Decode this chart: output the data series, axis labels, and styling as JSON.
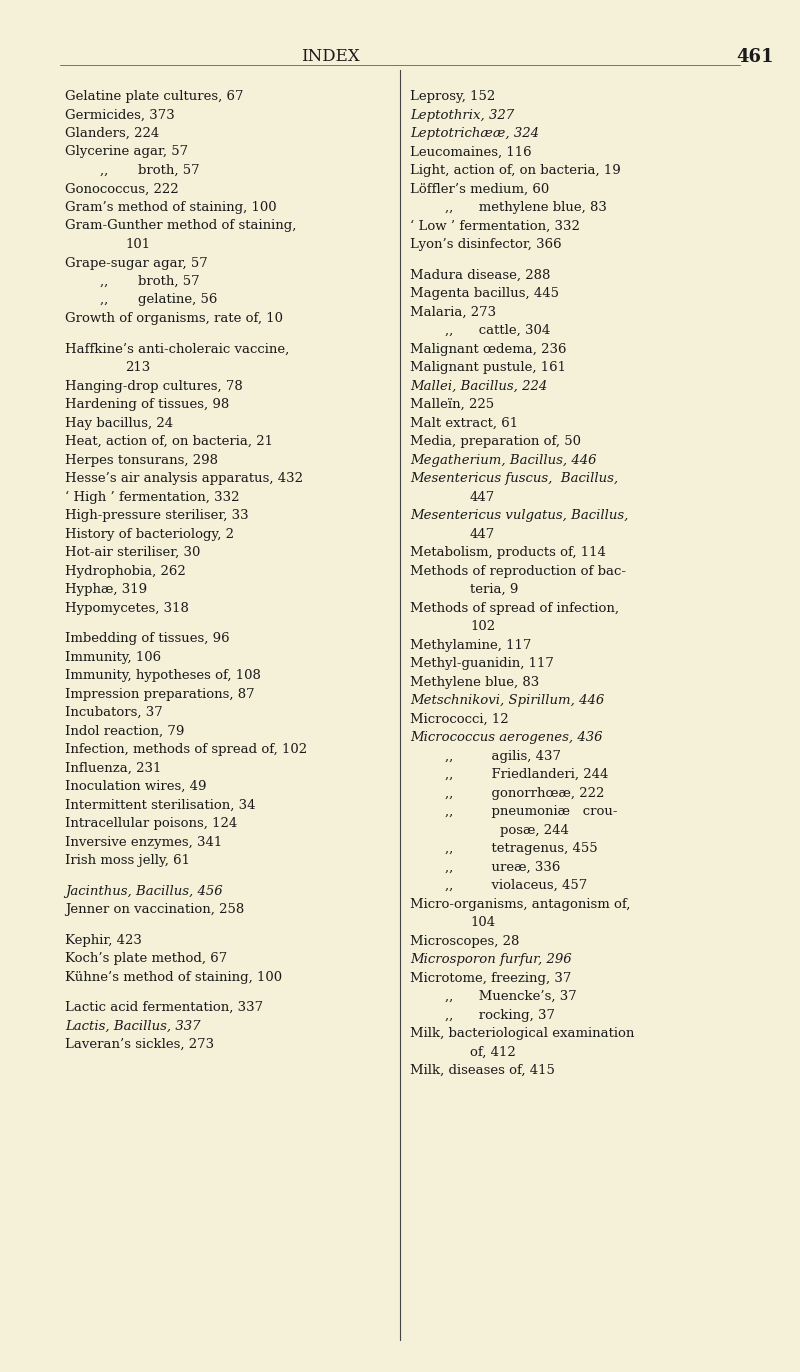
{
  "background_color": "#f5f0d8",
  "header_title": "INDEX",
  "header_page": "461",
  "left_column": [
    {
      "text": "Gelatine plate cultures, 67",
      "indent": 0,
      "italic": false
    },
    {
      "text": "Germicides, 373",
      "indent": 0,
      "italic": false
    },
    {
      "text": "Glanders, 224",
      "indent": 0,
      "italic": false
    },
    {
      "text": "Glycerine agar, 57",
      "indent": 0,
      "italic": false
    },
    {
      "text": ",,       broth, 57",
      "indent": 1,
      "italic": false
    },
    {
      "text": "Gonococcus, 222",
      "indent": 0,
      "italic": false
    },
    {
      "text": "Gram’s method of staining, 100",
      "indent": 0,
      "italic": false
    },
    {
      "text": "Gram-Gunther method of staining,",
      "indent": 0,
      "italic": false
    },
    {
      "text": "101",
      "indent": 2,
      "italic": false
    },
    {
      "text": "Grape-sugar agar, 57",
      "indent": 0,
      "italic": false
    },
    {
      "text": ",,       broth, 57",
      "indent": 1,
      "italic": false
    },
    {
      "text": ",,       gelatine, 56",
      "indent": 1,
      "italic": false
    },
    {
      "text": "Growth of organisms, rate of, 10",
      "indent": 0,
      "italic": false
    },
    {
      "text": "",
      "indent": 0,
      "italic": false
    },
    {
      "text": "Haffkine’s anti-choleraic vaccine,",
      "indent": 0,
      "italic": false
    },
    {
      "text": "213",
      "indent": 2,
      "italic": false
    },
    {
      "text": "Hanging-drop cultures, 78",
      "indent": 0,
      "italic": false
    },
    {
      "text": "Hardening of tissues, 98",
      "indent": 0,
      "italic": false
    },
    {
      "text": "Hay bacillus, 24",
      "indent": 0,
      "italic": false
    },
    {
      "text": "Heat, action of, on bacteria, 21",
      "indent": 0,
      "italic": false
    },
    {
      "text": "Herpes tonsurans, 298",
      "indent": 0,
      "italic": false
    },
    {
      "text": "Hesse’s air analysis apparatus, 432",
      "indent": 0,
      "italic": false
    },
    {
      "text": "‘ High ’ fermentation, 332",
      "indent": 0,
      "italic": false
    },
    {
      "text": "High-pressure steriliser, 33",
      "indent": 0,
      "italic": false
    },
    {
      "text": "History of bacteriology, 2",
      "indent": 0,
      "italic": false
    },
    {
      "text": "Hot-air steriliser, 30",
      "indent": 0,
      "italic": false
    },
    {
      "text": "Hydrophobia, 262",
      "indent": 0,
      "italic": false
    },
    {
      "text": "Hyphæ, 319",
      "indent": 0,
      "italic": false
    },
    {
      "text": "Hypomycetes, 318",
      "indent": 0,
      "italic": false
    },
    {
      "text": "",
      "indent": 0,
      "italic": false
    },
    {
      "text": "Imbedding of tissues, 96",
      "indent": 0,
      "italic": false
    },
    {
      "text": "Immunity, 106",
      "indent": 0,
      "italic": false
    },
    {
      "text": "Immunity, hypotheses of, 108",
      "indent": 0,
      "italic": false
    },
    {
      "text": "Impression preparations, 87",
      "indent": 0,
      "italic": false
    },
    {
      "text": "Incubators, 37",
      "indent": 0,
      "italic": false
    },
    {
      "text": "Indol reaction, 79",
      "indent": 0,
      "italic": false
    },
    {
      "text": "Infection, methods of spread of, 102",
      "indent": 0,
      "italic": false
    },
    {
      "text": "Influenza, 231",
      "indent": 0,
      "italic": false
    },
    {
      "text": "Inoculation wires, 49",
      "indent": 0,
      "italic": false
    },
    {
      "text": "Intermittent sterilisation, 34",
      "indent": 0,
      "italic": false
    },
    {
      "text": "Intracellular poisons, 124",
      "indent": 0,
      "italic": false
    },
    {
      "text": "Inversive enzymes, 341",
      "indent": 0,
      "italic": false
    },
    {
      "text": "Irish moss jelly, 61",
      "indent": 0,
      "italic": false
    },
    {
      "text": "",
      "indent": 0,
      "italic": false
    },
    {
      "text": "Jacinthus, Bacillus, 456",
      "indent": 0,
      "italic": true
    },
    {
      "text": "Jenner on vaccination, 258",
      "indent": 0,
      "italic": false
    },
    {
      "text": "",
      "indent": 0,
      "italic": false
    },
    {
      "text": "Kephir, 423",
      "indent": 0,
      "italic": false
    },
    {
      "text": "Koch’s plate method, 67",
      "indent": 0,
      "italic": false
    },
    {
      "text": "Kühne’s method of staining, 100",
      "indent": 0,
      "italic": false
    },
    {
      "text": "",
      "indent": 0,
      "italic": false
    },
    {
      "text": "Lactic acid fermentation, 337",
      "indent": 0,
      "italic": false
    },
    {
      "text": "Lactis, Bacillus, 337",
      "indent": 0,
      "italic": true
    },
    {
      "text": "Laveran’s sickles, 273",
      "indent": 0,
      "italic": false
    }
  ],
  "right_column": [
    {
      "text": "Leprosy, 152",
      "indent": 0,
      "italic": false
    },
    {
      "text": "Leptothrix, 327",
      "indent": 0,
      "italic": true
    },
    {
      "text": "Leptotrichææ, 324",
      "indent": 0,
      "italic": true
    },
    {
      "text": "Leucomaines, 116",
      "indent": 0,
      "italic": false
    },
    {
      "text": "Light, action of, on bacteria, 19",
      "indent": 0,
      "italic": false
    },
    {
      "text": "Löffler’s medium, 60",
      "indent": 0,
      "italic": false
    },
    {
      "text": ",,      methylene blue, 83",
      "indent": 1,
      "italic": false
    },
    {
      "text": "‘ Low ’ fermentation, 332",
      "indent": 0,
      "italic": false
    },
    {
      "text": "Lyon’s disinfector, 366",
      "indent": 0,
      "italic": false
    },
    {
      "text": "",
      "indent": 0,
      "italic": false
    },
    {
      "text": "Madura disease, 288",
      "indent": 0,
      "italic": false
    },
    {
      "text": "Magenta bacillus, 445",
      "indent": 0,
      "italic": false
    },
    {
      "text": "Malaria, 273",
      "indent": 0,
      "italic": false
    },
    {
      "text": ",,      cattle, 304",
      "indent": 1,
      "italic": false
    },
    {
      "text": "Malignant œdema, 236",
      "indent": 0,
      "italic": false
    },
    {
      "text": "Malignant pustule, 161",
      "indent": 0,
      "italic": false
    },
    {
      "text": "Mallei, Bacillus, 224",
      "indent": 0,
      "italic": true
    },
    {
      "text": "Malleïn, 225",
      "indent": 0,
      "italic": false
    },
    {
      "text": "Malt extract, 61",
      "indent": 0,
      "italic": false
    },
    {
      "text": "Media, preparation of, 50",
      "indent": 0,
      "italic": false
    },
    {
      "text": "Megatherium, Bacillus, 446",
      "indent": 0,
      "italic": true
    },
    {
      "text": "Mesentericus fuscus,  Bacillus,",
      "indent": 0,
      "italic": true
    },
    {
      "text": "447",
      "indent": 2,
      "italic": false
    },
    {
      "text": "Mesentericus vulgatus, Bacillus,",
      "indent": 0,
      "italic": true
    },
    {
      "text": "447",
      "indent": 2,
      "italic": false
    },
    {
      "text": "Metabolism, products of, 114",
      "indent": 0,
      "italic": false
    },
    {
      "text": "Methods of reproduction of bac-",
      "indent": 0,
      "italic": false
    },
    {
      "text": "teria, 9",
      "indent": 2,
      "italic": false
    },
    {
      "text": "Methods of spread of infection,",
      "indent": 0,
      "italic": false
    },
    {
      "text": "102",
      "indent": 2,
      "italic": false
    },
    {
      "text": "Methylamine, 117",
      "indent": 0,
      "italic": false
    },
    {
      "text": "Methyl-guanidin, 117",
      "indent": 0,
      "italic": false
    },
    {
      "text": "Methylene blue, 83",
      "indent": 0,
      "italic": false
    },
    {
      "text": "Metschnikovi, Spirillum, 446",
      "indent": 0,
      "italic": true
    },
    {
      "text": "Micrococci, 12",
      "indent": 0,
      "italic": false
    },
    {
      "text": "Micrococcus aerogenes, 436",
      "indent": 0,
      "italic": true
    },
    {
      "text": ",,         agilis, 437",
      "indent": 1,
      "italic": false
    },
    {
      "text": ",,         Friedlanderi, 244",
      "indent": 1,
      "italic": false
    },
    {
      "text": ",,         gonorrhœæ, 222",
      "indent": 1,
      "italic": false
    },
    {
      "text": ",,         pneumoniæ   crou-",
      "indent": 1,
      "italic": false
    },
    {
      "text": "posæ, 244",
      "indent": 3,
      "italic": false
    },
    {
      "text": ",,         tetragenus, 455",
      "indent": 1,
      "italic": false
    },
    {
      "text": ",,         ureæ, 336",
      "indent": 1,
      "italic": false
    },
    {
      "text": ",,         violaceus, 457",
      "indent": 1,
      "italic": false
    },
    {
      "text": "Micro-organisms, antagonism of,",
      "indent": 0,
      "italic": false
    },
    {
      "text": "104",
      "indent": 2,
      "italic": false
    },
    {
      "text": "Microscopes, 28",
      "indent": 0,
      "italic": false
    },
    {
      "text": "Microsporon furfur, 296",
      "indent": 0,
      "italic": true
    },
    {
      "text": "Microtome, freezing, 37",
      "indent": 0,
      "italic": false
    },
    {
      "text": ",,      Muencke’s, 37",
      "indent": 1,
      "italic": false
    },
    {
      "text": ",,      rocking, 37",
      "indent": 1,
      "italic": false
    },
    {
      "text": "Milk, bacteriological examination",
      "indent": 0,
      "italic": false
    },
    {
      "text": "of, 412",
      "indent": 2,
      "italic": false
    },
    {
      "text": "Milk, diseases of, 415",
      "indent": 0,
      "italic": false
    }
  ],
  "font_size": 9.5,
  "header_font_size": 12,
  "text_color": "#1a1a1a",
  "bg_color": "#f5f0d8"
}
